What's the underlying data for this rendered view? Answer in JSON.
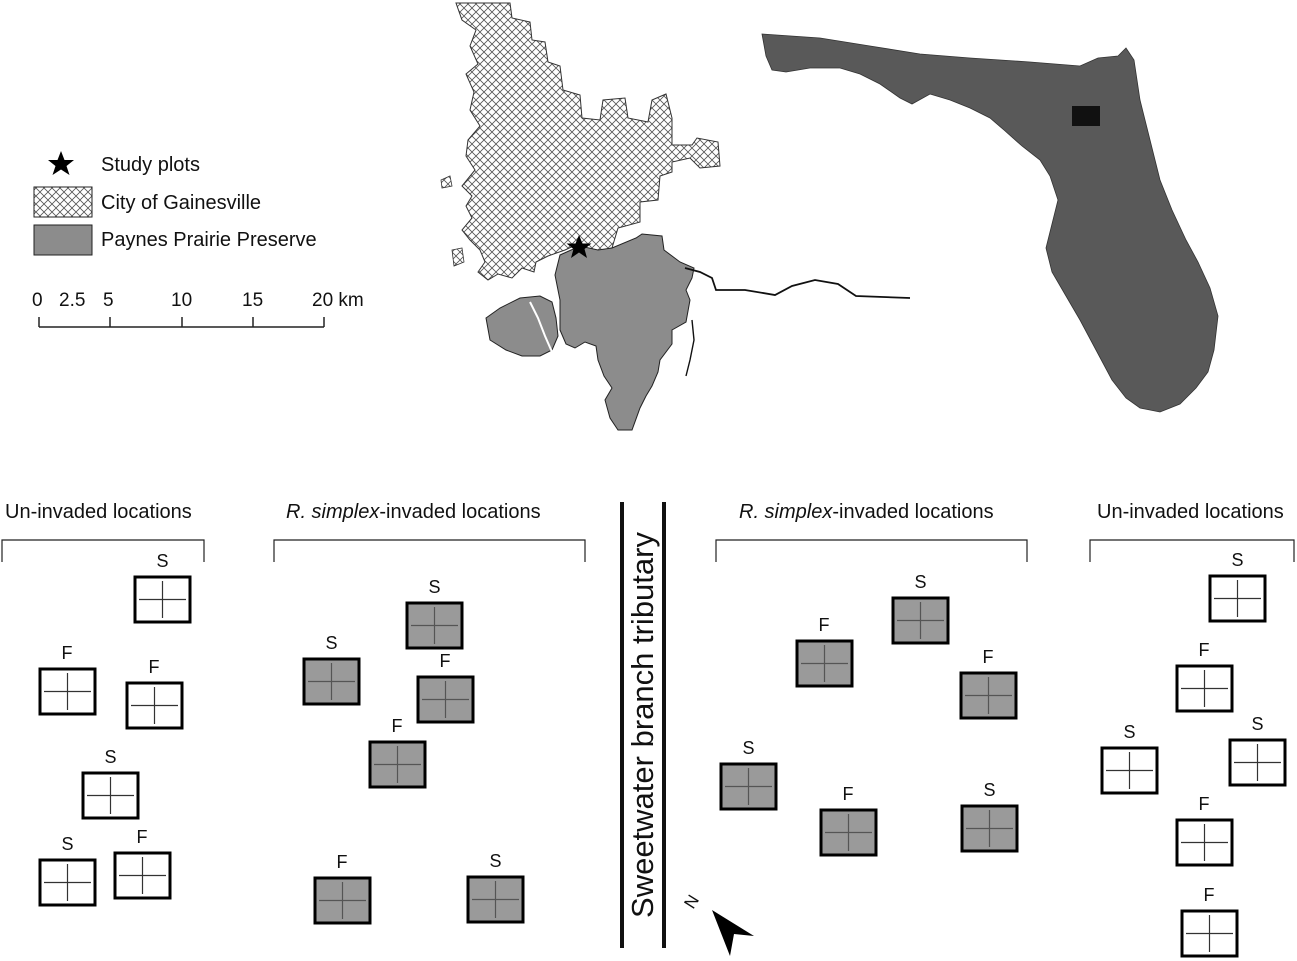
{
  "legend": {
    "items": [
      {
        "key": "star",
        "label": "Study plots"
      },
      {
        "key": "hatch",
        "label": "City of Gainesville"
      },
      {
        "key": "gray",
        "label": "Paynes Prairie Preserve"
      }
    ]
  },
  "scalebar": {
    "ticks": [
      "0",
      "2.5",
      "5",
      "10",
      "15",
      "20 km"
    ]
  },
  "sections": {
    "uninvaded_left": "Un-invaded locations",
    "invaded_left_italic": "R. simplex",
    "invaded_left_rest": "-invaded locations",
    "invaded_right_italic": "R. simplex",
    "invaded_right_rest": "-invaded locations",
    "uninvaded_right": "Un-invaded locations"
  },
  "tributary_label": "Sweetwater branch tributary",
  "north_label": "N",
  "colors": {
    "preserve": "#8c8c8c",
    "florida": "#595959",
    "invaded_plot": "#9a9a9a",
    "uninvaded_plot": "#ffffff"
  },
  "plots": [
    {
      "group": "uninvaded-left",
      "label": "S",
      "invaded": false
    },
    {
      "group": "uninvaded-left",
      "label": "F",
      "invaded": false
    },
    {
      "group": "uninvaded-left",
      "label": "F",
      "invaded": false
    },
    {
      "group": "uninvaded-left",
      "label": "S",
      "invaded": false
    },
    {
      "group": "uninvaded-left",
      "label": "S",
      "invaded": false
    },
    {
      "group": "uninvaded-left",
      "label": "F",
      "invaded": false
    },
    {
      "group": "invaded-left",
      "label": "S",
      "invaded": true
    },
    {
      "group": "invaded-left",
      "label": "S",
      "invaded": true
    },
    {
      "group": "invaded-left",
      "label": "F",
      "invaded": true
    },
    {
      "group": "invaded-left",
      "label": "F",
      "invaded": true
    },
    {
      "group": "invaded-left",
      "label": "F",
      "invaded": true
    },
    {
      "group": "invaded-left",
      "label": "S",
      "invaded": true
    },
    {
      "group": "invaded-right",
      "label": "S",
      "invaded": true
    },
    {
      "group": "invaded-right",
      "label": "F",
      "invaded": true
    },
    {
      "group": "invaded-right",
      "label": "F",
      "invaded": true
    },
    {
      "group": "invaded-right",
      "label": "S",
      "invaded": true
    },
    {
      "group": "invaded-right",
      "label": "F",
      "invaded": true
    },
    {
      "group": "invaded-right",
      "label": "S",
      "invaded": true
    },
    {
      "group": "uninvaded-right",
      "label": "S",
      "invaded": false
    },
    {
      "group": "uninvaded-right",
      "label": "F",
      "invaded": false
    },
    {
      "group": "uninvaded-right",
      "label": "S",
      "invaded": false
    },
    {
      "group": "uninvaded-right",
      "label": "S",
      "invaded": false
    },
    {
      "group": "uninvaded-right",
      "label": "F",
      "invaded": false
    },
    {
      "group": "uninvaded-right",
      "label": "F",
      "invaded": false
    }
  ]
}
